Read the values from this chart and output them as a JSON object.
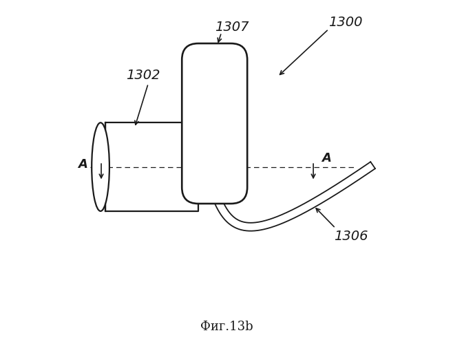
{
  "title": "Фиг.13b",
  "bg_color": "#ffffff",
  "line_color": "#1a1a1a",
  "label_1300": "1300",
  "label_1307": "1307",
  "label_1302": "1302",
  "label_1306": "1306",
  "label_A": "A",
  "fig_width": 6.58,
  "fig_height": 5.0,
  "dpi": 100
}
